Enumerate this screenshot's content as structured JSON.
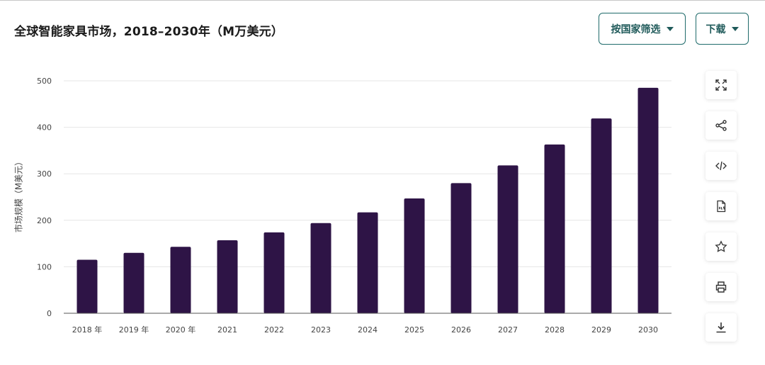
{
  "header": {
    "title": "全球智能家具市场，2018–2030年（M万美元）",
    "filter_label": "按国家筛选",
    "download_label": "下载"
  },
  "toolbar_icons": [
    "expand-icon",
    "share-icon",
    "embed-code-icon",
    "xls-file-icon",
    "star-icon",
    "print-icon",
    "download-icon"
  ],
  "colors": {
    "bar": "#2e1446",
    "accent": "#1f6b6b",
    "grid": "#e6e6e6"
  },
  "chart_data": {
    "type": "bar",
    "categories": [
      "2018 年",
      "2019 年",
      "2020 年",
      "2021",
      "2022",
      "2023",
      "2024",
      "2025",
      "2026",
      "2027",
      "2028",
      "2029",
      "2030"
    ],
    "values": [
      115,
      130,
      143,
      157,
      174,
      194,
      217,
      247,
      280,
      318,
      363,
      419,
      485
    ],
    "ylabel": "市场规模（M美元）",
    "xlabel": "",
    "ylim": [
      0,
      500
    ],
    "yticks": [
      0,
      100,
      200,
      300,
      400,
      500
    ],
    "grid": true,
    "legend": "none"
  }
}
